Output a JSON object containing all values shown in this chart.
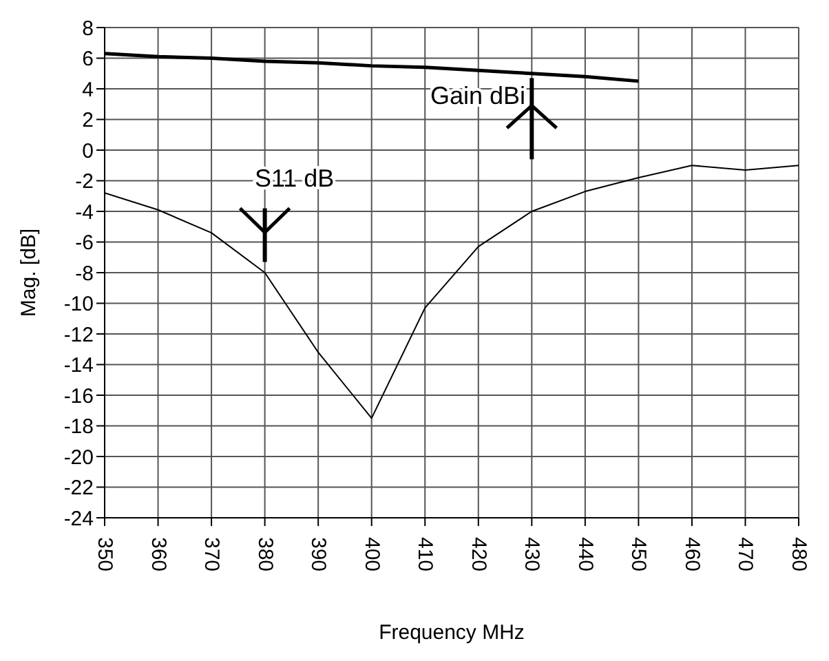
{
  "chart_data": {
    "type": "line",
    "xlabel": "Frequency MHz",
    "ylabel": "Mag. [dB]",
    "x": [
      350,
      360,
      370,
      380,
      390,
      400,
      410,
      420,
      430,
      440,
      450,
      460,
      470,
      480
    ],
    "series": [
      {
        "name": "Gain dBi",
        "color": "#000000",
        "values": [
          6.3,
          6.1,
          6.0,
          5.8,
          5.7,
          5.5,
          5.4,
          5.2,
          5.0,
          4.8,
          4.5,
          null,
          null,
          null
        ]
      },
      {
        "name": "S11 dB",
        "color": "#000000",
        "values": [
          -2.8,
          -3.9,
          -5.4,
          -8,
          -13.2,
          -17.5,
          -10.3,
          -6.3,
          -4.0,
          -2.7,
          -1.8,
          -1.0,
          -1.3,
          -1.0
        ]
      }
    ],
    "xlim": [
      350,
      480
    ],
    "xticks": [
      350,
      360,
      370,
      380,
      390,
      400,
      410,
      420,
      430,
      440,
      450,
      460,
      470,
      480
    ],
    "ylim": [
      -24,
      8
    ],
    "yticks": [
      -24,
      -22,
      -20,
      -18,
      -16,
      -14,
      -12,
      -10,
      -8,
      -6,
      -4,
      -2,
      0,
      2,
      4,
      6,
      8
    ],
    "grid": true,
    "legend": false,
    "marker": "none",
    "line_style": "solid"
  }
}
